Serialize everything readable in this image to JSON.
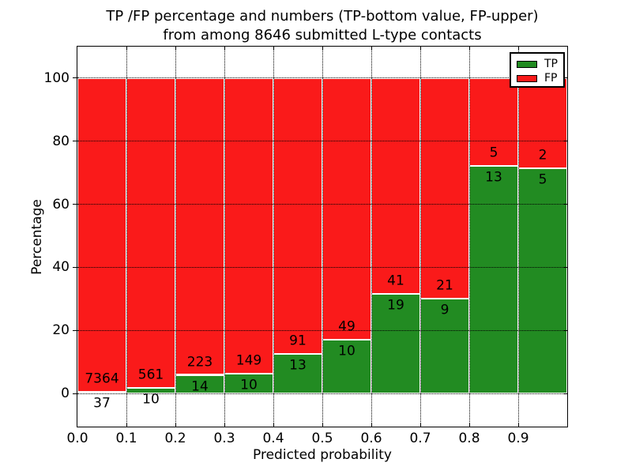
{
  "title": {
    "line1": "TP /FP percentage and numbers (TP-bottom value, FP-upper)",
    "line2": "from among 8646 submitted L-type contacts"
  },
  "axes": {
    "xlabel": "Predicted probability",
    "ylabel": "Percentage",
    "xlim": [
      0,
      1
    ],
    "ylim": [
      -10.5,
      110
    ],
    "grid": "dotted",
    "xticks": [
      {
        "value": 0.0,
        "label": "0.0"
      },
      {
        "value": 0.1,
        "label": "0.1"
      },
      {
        "value": 0.2,
        "label": "0.2"
      },
      {
        "value": 0.3,
        "label": "0.3"
      },
      {
        "value": 0.4,
        "label": "0.4"
      },
      {
        "value": 0.5,
        "label": "0.5"
      },
      {
        "value": 0.6,
        "label": "0.6"
      },
      {
        "value": 0.7,
        "label": "0.7"
      },
      {
        "value": 0.8,
        "label": "0.8"
      },
      {
        "value": 0.9,
        "label": "0.9"
      }
    ],
    "yticks": [
      {
        "value": 0,
        "label": "0"
      },
      {
        "value": 20,
        "label": "20"
      },
      {
        "value": 40,
        "label": "40"
      },
      {
        "value": 60,
        "label": "60"
      },
      {
        "value": 80,
        "label": "80"
      },
      {
        "value": 100,
        "label": "100"
      }
    ]
  },
  "legend": {
    "position": "upper-right",
    "entries": [
      {
        "label": "TP",
        "color": "#228B22"
      },
      {
        "label": "FP",
        "color": "#FA1A1A"
      }
    ]
  },
  "chart_data": {
    "type": "bar",
    "stacked": true,
    "normalized_total_percent": 100,
    "total_contacts": 8646,
    "bin_edges": [
      0.0,
      0.1,
      0.2,
      0.3,
      0.4,
      0.5,
      0.6,
      0.7,
      0.8,
      0.9,
      1.0
    ],
    "series": [
      {
        "name": "TP",
        "position": "bottom",
        "color": "#228B22",
        "counts": [
          37,
          10,
          14,
          10,
          13,
          10,
          19,
          9,
          13,
          5
        ]
      },
      {
        "name": "FP",
        "position": "top",
        "color": "#FA1A1A",
        "counts": [
          7364,
          561,
          223,
          149,
          91,
          49,
          41,
          21,
          5,
          2
        ]
      }
    ],
    "tp_percent": [
      0.5,
      1.75,
      5.91,
      6.29,
      12.5,
      16.95,
      31.67,
      30.0,
      72.22,
      71.43
    ],
    "label_note": "TP count below segment boundary, FP count above segment boundary"
  }
}
